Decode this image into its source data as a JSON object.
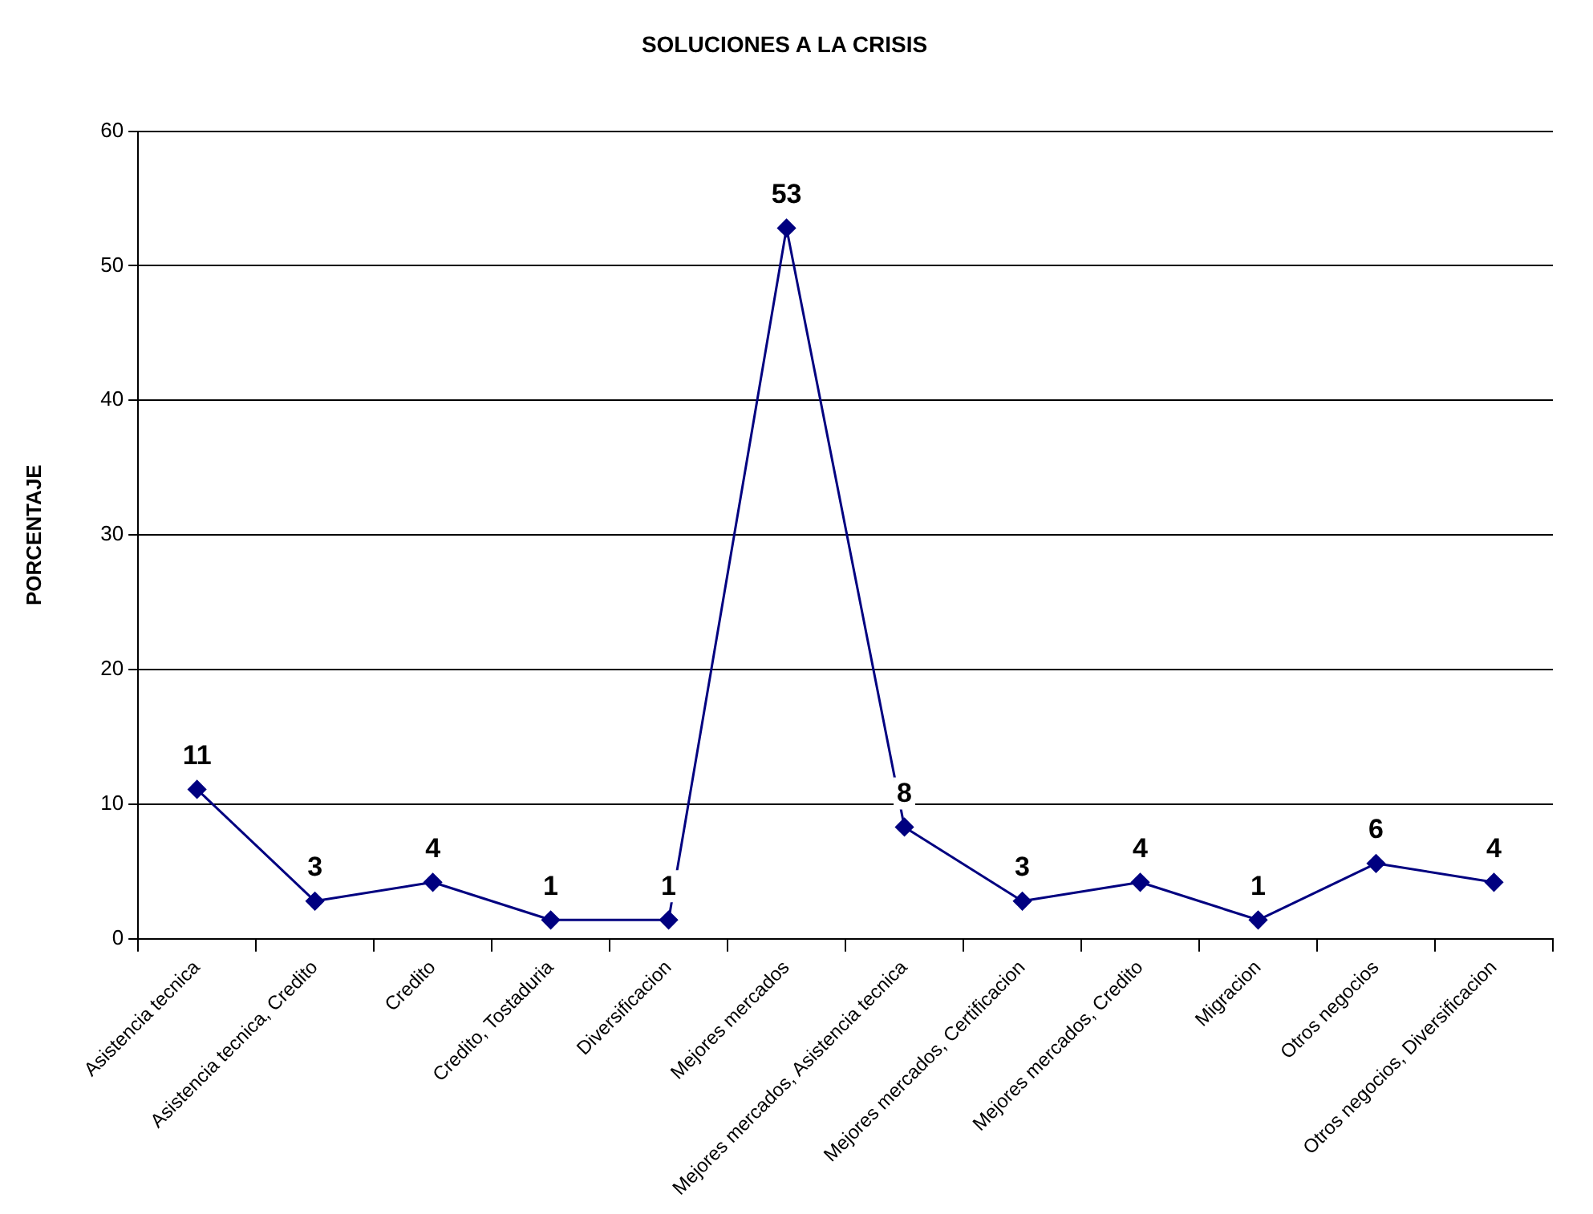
{
  "chart_data": {
    "type": "line",
    "title": "SOLUCIONES A LA CRISIS",
    "ylabel": "PORCENTAJE",
    "categories": [
      "Asistencia tecnica",
      "Asistencia tecnica, Credito",
      "Credito",
      "Credito, Tostaduria",
      "Diversificacion",
      "Mejores mercados",
      "Mejores mercados, Asistencia tecnica",
      "Mejores mercados, Certificacion",
      "Mejores mercados, Credito",
      "Migracion",
      "Otros negocios",
      "Otros negocios, Diversificacion"
    ],
    "series": [
      {
        "color": "#000080",
        "values": [
          11.1,
          2.8,
          4.2,
          1.4,
          1.4,
          52.8,
          8.3,
          2.8,
          4.2,
          1.4,
          5.6,
          4.2
        ],
        "value_labels": [
          "11",
          "3",
          "4",
          "1",
          "1",
          "53",
          "8",
          "3",
          "4",
          "1",
          "6",
          "4"
        ]
      }
    ],
    "ylim": [
      0,
      60
    ],
    "yticks": [
      0,
      10,
      20,
      30,
      40,
      50,
      60
    ],
    "grid": "y",
    "legend": false,
    "marker": "diamond",
    "line_style": "solid"
  }
}
